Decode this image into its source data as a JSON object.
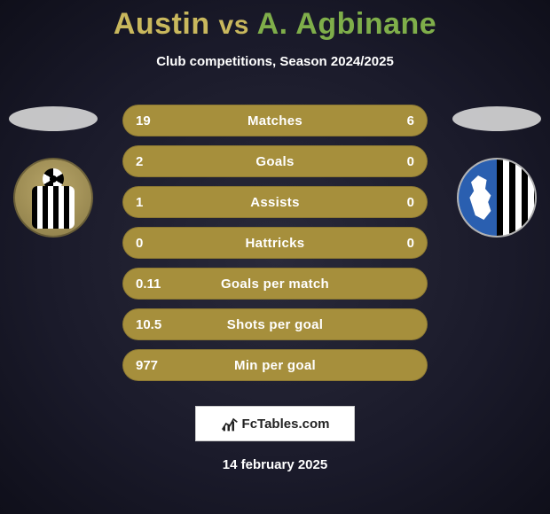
{
  "title": {
    "player1": "Austin",
    "vs": "vs",
    "player2": "A. Agbinane",
    "player1_color": "#c9b85d",
    "player2_color": "#7fae4a"
  },
  "subtitle": "Club competitions, Season 2024/2025",
  "stats": {
    "row_bg": "#a68f3c",
    "rows": [
      {
        "left": "19",
        "label": "Matches",
        "right": "6"
      },
      {
        "left": "2",
        "label": "Goals",
        "right": "0"
      },
      {
        "left": "1",
        "label": "Assists",
        "right": "0"
      },
      {
        "left": "0",
        "label": "Hattricks",
        "right": "0"
      },
      {
        "left": "0.11",
        "label": "Goals per match",
        "right": ""
      },
      {
        "left": "10.5",
        "label": "Shots per goal",
        "right": ""
      },
      {
        "left": "977",
        "label": "Min per goal",
        "right": ""
      }
    ]
  },
  "badges": {
    "left_ellipse_color": "#d8d8d8",
    "right_ellipse_color": "#d8d8d8"
  },
  "footer": {
    "logo_text": "FcTables.com",
    "date": "14 february 2025"
  },
  "colors": {
    "background_center": "#2a2a3a",
    "background_edge": "#0f0f1a",
    "text": "#ffffff"
  }
}
